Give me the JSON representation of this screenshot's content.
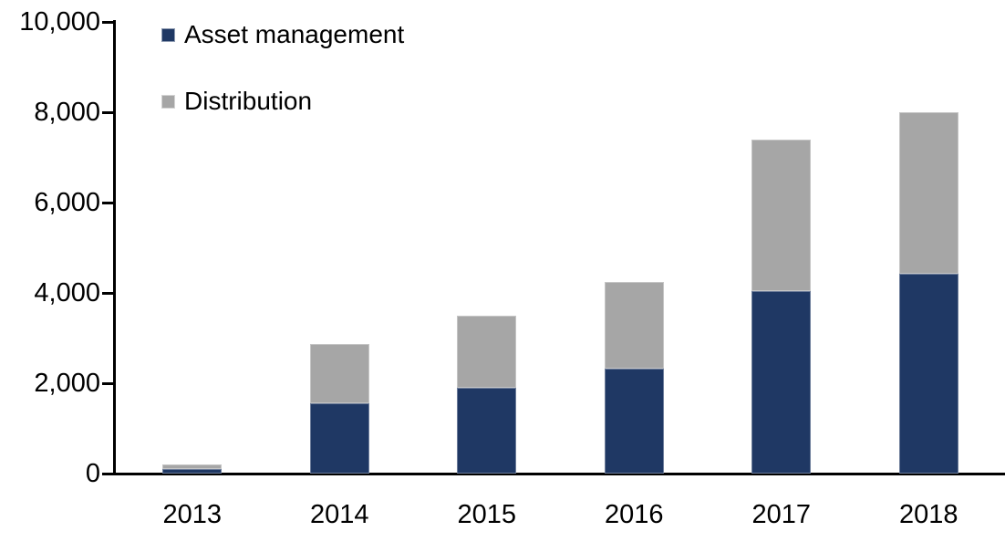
{
  "chart_data": {
    "type": "bar",
    "stacked": true,
    "title": "",
    "xlabel": "",
    "ylabel": "",
    "categories": [
      "2013",
      "2014",
      "2015",
      "2016",
      "2017",
      "2018"
    ],
    "series": [
      {
        "name": "Asset management",
        "color": "#1F3864",
        "values": [
          100,
          1550,
          1900,
          2320,
          4050,
          4430
        ]
      },
      {
        "name": "Distribution",
        "color": "#A6A6A6",
        "values": [
          100,
          1325,
          1600,
          1930,
          3350,
          3570
        ]
      }
    ],
    "totals": [
      200,
      2875,
      3500,
      4250,
      7400,
      8000
    ],
    "ylim": [
      0,
      10000
    ],
    "yticks": [
      {
        "value": 0,
        "label": "0"
      },
      {
        "value": 2000,
        "label": "2,000"
      },
      {
        "value": 4000,
        "label": "4,000"
      },
      {
        "value": 6000,
        "label": "6,000"
      },
      {
        "value": 8000,
        "label": "8,000"
      },
      {
        "value": 10000,
        "label": "10,000"
      }
    ],
    "grid": false,
    "legend_position": "top-left-inside",
    "axis_color": "#000000",
    "background_color": "#FFFFFF"
  }
}
